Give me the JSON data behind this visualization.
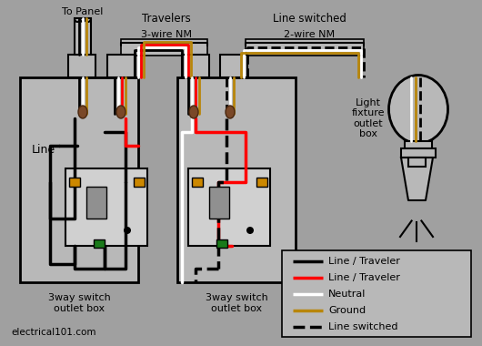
{
  "bg_color": "#a0a0a0",
  "colors": {
    "black": "#000000",
    "red": "#ff0000",
    "white": "#ffffff",
    "ground": "#b8860b",
    "brown": "#7a4828",
    "green": "#1a7a1a",
    "orange": "#cc8800",
    "box_fill": "#b8b8b8",
    "switch_fill": "#d0d0d0",
    "toggle_fill": "#909090"
  },
  "labels": {
    "to_panel": "To Panel",
    "travelers": "Travelers",
    "line_switched": "Line switched",
    "wire_nm_3": "3-wire NM",
    "wire_nm_2": "2-wire NM",
    "line_label": "Line",
    "box1_label": "3way switch\noutlet box",
    "box2_label": "3way switch\noutlet box",
    "light_label": "Light\nfixture\noutlet\nbox",
    "website": "electrical101.com"
  },
  "legend": [
    {
      "label": "Line / Traveler",
      "color": "#000000",
      "style": "solid"
    },
    {
      "label": "Line / Traveler",
      "color": "#ff0000",
      "style": "solid"
    },
    {
      "label": "Neutral",
      "color": "#ffffff",
      "style": "solid"
    },
    {
      "label": "Ground",
      "color": "#b8860b",
      "style": "solid"
    },
    {
      "label": "Line switched",
      "color": "#000000",
      "style": "dashed"
    }
  ]
}
